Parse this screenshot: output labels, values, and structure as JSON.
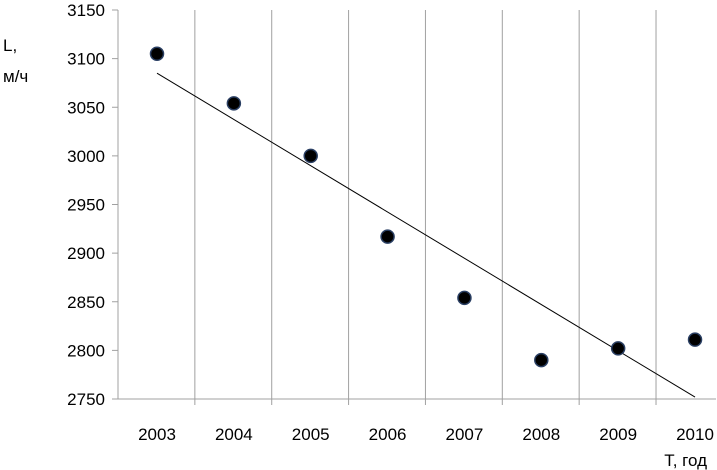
{
  "chart_data": {
    "type": "scatter",
    "ylabel_line1": "L,",
    "ylabel_line2": "м/ч",
    "xlabel": "T, год",
    "x_categories": [
      "2003",
      "2004",
      "2005",
      "2006",
      "2007",
      "2008",
      "2009",
      "2010"
    ],
    "ylim": [
      2750,
      3150
    ],
    "y_ticks": [
      "3150",
      "3100",
      "3050",
      "3000",
      "2950",
      "2900",
      "2850",
      "2800",
      "2750"
    ],
    "y_tick_values": [
      3150,
      3100,
      3050,
      3000,
      2950,
      2900,
      2850,
      2800,
      2750
    ],
    "grid": "vertical",
    "series": [
      {
        "values": [
          3105,
          3054,
          3000,
          2917,
          2854,
          2790,
          2802,
          2811
        ],
        "marker_color": "#000000",
        "marker_edge_color": "#2a3f63"
      }
    ],
    "trendline": {
      "start": 3085,
      "end": 2752,
      "color": "#000000"
    }
  }
}
